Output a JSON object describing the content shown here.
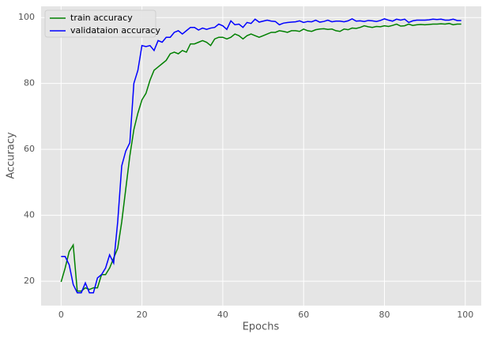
{
  "chart_data": {
    "type": "line",
    "xlabel": "Epochs",
    "ylabel": "Accuracy",
    "x": [
      0,
      1,
      2,
      3,
      4,
      5,
      6,
      7,
      8,
      9,
      10,
      11,
      12,
      13,
      14,
      15,
      16,
      17,
      18,
      19,
      20,
      21,
      22,
      23,
      24,
      25,
      26,
      27,
      28,
      29,
      30,
      31,
      32,
      33,
      34,
      35,
      36,
      37,
      38,
      39,
      40,
      41,
      42,
      43,
      44,
      45,
      46,
      47,
      48,
      49,
      50,
      51,
      52,
      53,
      54,
      55,
      56,
      57,
      58,
      59,
      60,
      61,
      62,
      63,
      64,
      65,
      66,
      67,
      68,
      69,
      70,
      71,
      72,
      73,
      74,
      75,
      76,
      77,
      78,
      79,
      80,
      81,
      82,
      83,
      84,
      85,
      86,
      87,
      88,
      89,
      90,
      91,
      92,
      93,
      94,
      95,
      96,
      97,
      98,
      99
    ],
    "series": [
      {
        "name": "train accuracy",
        "color": "#008000",
        "values": [
          19.8,
          24,
          29,
          31,
          17,
          17,
          18,
          17.5,
          18,
          18,
          22,
          22,
          24,
          27,
          30,
          38,
          48,
          58,
          66,
          71,
          75,
          77,
          81,
          84,
          85,
          86,
          87,
          89,
          89.5,
          89,
          90,
          89.5,
          92,
          92,
          92.5,
          93,
          92.5,
          91.5,
          93.5,
          94,
          94,
          93.5,
          94,
          95,
          94.5,
          93.5,
          94.5,
          95,
          94.5,
          94,
          94.5,
          95,
          95.5,
          95.5,
          96,
          95.8,
          95.5,
          96,
          96,
          95.8,
          96.5,
          96,
          95.8,
          96.3,
          96.5,
          96.6,
          96.4,
          96.5,
          96,
          95.8,
          96.5,
          96.3,
          96.8,
          96.7,
          97,
          97.5,
          97.2,
          97,
          97.3,
          97.2,
          97.5,
          97.3,
          97.6,
          98,
          97.4,
          97.5,
          98,
          97.6,
          97.8,
          97.9,
          97.8,
          97.9,
          98,
          98,
          98.1,
          98,
          98.2,
          97.8,
          98,
          98
        ]
      },
      {
        "name": "validataion accuracy",
        "color": "#0000ff",
        "values": [
          27.5,
          27.5,
          25,
          19,
          16.5,
          16.5,
          19.5,
          16.5,
          16.5,
          21,
          22,
          24,
          28,
          25.5,
          38,
          55,
          59.5,
          62,
          80,
          84,
          91.5,
          91.2,
          91.5,
          90,
          93,
          92.5,
          94,
          94,
          95.5,
          96,
          95,
          96,
          97,
          97,
          96.2,
          96.8,
          96.4,
          96.8,
          97,
          98,
          97.5,
          96.4,
          99,
          97.8,
          98,
          97,
          98.5,
          98.2,
          99.5,
          98.6,
          98.9,
          99.2,
          98.9,
          98.8,
          97.8,
          98.3,
          98.5,
          98.6,
          98.7,
          99,
          98.5,
          98.8,
          98.7,
          99.2,
          98.6,
          98.8,
          99.2,
          98.7,
          98.9,
          98.9,
          98.7,
          99,
          99.6,
          98.9,
          99,
          98.8,
          99.1,
          99,
          98.8,
          99.1,
          99.6,
          99.2,
          98.9,
          99.5,
          99.2,
          99.5,
          98.5,
          99,
          99.2,
          99.2,
          99.2,
          99.3,
          99.5,
          99.4,
          99.5,
          99.2,
          99.2,
          99.5,
          99.1,
          99.1
        ]
      }
    ],
    "xlim": [
      -4.95,
      103.95
    ],
    "ylim": [
      12.6,
      103.4
    ],
    "xticks": [
      0,
      20,
      40,
      60,
      80,
      100
    ],
    "yticks": [
      20,
      40,
      60,
      80,
      100
    ],
    "grid": true,
    "legend": "upper left"
  }
}
